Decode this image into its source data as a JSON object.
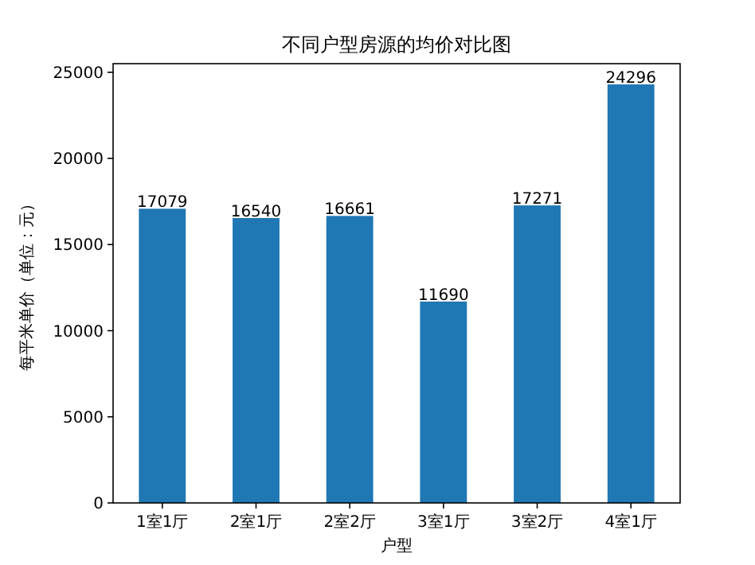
{
  "chart_data": {
    "type": "bar",
    "title": "不同户型房源的均价对比图",
    "xlabel": "户型",
    "ylabel": "每平米单价（单位：元）",
    "categories": [
      "1室1厅",
      "2室1厅",
      "2室2厅",
      "3室1厅",
      "3室2厅",
      "4室1厅"
    ],
    "values": [
      17079,
      16540,
      16661,
      11690,
      17271,
      24296
    ],
    "color": "#1f77b4",
    "ylim": [
      0,
      25500
    ],
    "yticks": [
      0,
      5000,
      10000,
      15000,
      20000,
      25000
    ],
    "data_labels": true,
    "grid": false
  }
}
